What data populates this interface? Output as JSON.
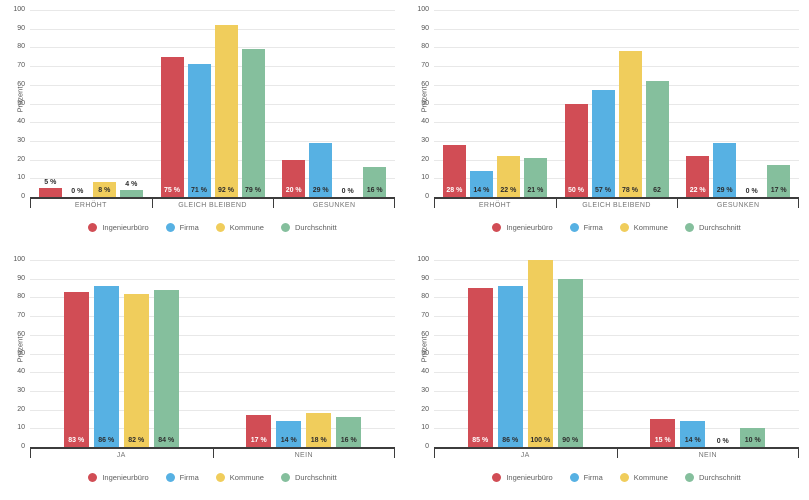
{
  "page": {
    "background": "#ffffff"
  },
  "colors": {
    "axis": "#3c3c3c",
    "gridline": "#e8e8e8",
    "tick_text": "#555555",
    "category_text": "#757575",
    "legend_text": "#5f5f5f"
  },
  "chart_data": [
    {
      "type": "bar",
      "position": "top-left",
      "title": "",
      "xlabel": "",
      "ylabel": "Prozent",
      "ylim": [
        0,
        100
      ],
      "yticks": [
        0,
        10,
        20,
        30,
        40,
        50,
        60,
        70,
        80,
        90,
        100
      ],
      "grid": true,
      "legend_position": "bottom",
      "categories": [
        "ERHÖHT",
        "GLEICH BLEIBEND",
        "GESUNKEN"
      ],
      "series": [
        {
          "name": "Ingenieurbüro",
          "color": "#d14d55",
          "inside_label_color": "#ffffff",
          "values": [
            5,
            75,
            20
          ],
          "labels": [
            "5 %",
            "75 %",
            "20 %"
          ]
        },
        {
          "name": "Firma",
          "color": "#57b1e3",
          "inside_label_color": "#2e2e2e",
          "values": [
            0,
            71,
            29
          ],
          "labels": [
            "0 %",
            "71 %",
            "29 %"
          ]
        },
        {
          "name": "Kommune",
          "color": "#f0cd5c",
          "inside_label_color": "#2e2e2e",
          "values": [
            8,
            92,
            0
          ],
          "labels": [
            "8 %",
            "92 %",
            "0 %"
          ]
        },
        {
          "name": "Durchschnitt",
          "color": "#85bf9d",
          "inside_label_color": "#2e2e2e",
          "values": [
            4,
            79,
            16
          ],
          "labels": [
            "4 %",
            "79 %",
            "16 %"
          ]
        }
      ]
    },
    {
      "type": "bar",
      "position": "top-right",
      "title": "",
      "xlabel": "",
      "ylabel": "Prozent",
      "ylim": [
        0,
        100
      ],
      "yticks": [
        0,
        10,
        20,
        30,
        40,
        50,
        60,
        70,
        80,
        90,
        100
      ],
      "grid": true,
      "legend_position": "bottom",
      "categories": [
        "ERHÖHT",
        "GLEICH BLEIBEND",
        "GESUNKEN"
      ],
      "series": [
        {
          "name": "Ingenieurbüro",
          "color": "#d14d55",
          "inside_label_color": "#ffffff",
          "values": [
            28,
            50,
            22
          ],
          "labels": [
            "28 %",
            "50 %",
            "22 %"
          ]
        },
        {
          "name": "Firma",
          "color": "#57b1e3",
          "inside_label_color": "#2e2e2e",
          "values": [
            14,
            57,
            29
          ],
          "labels": [
            "14 %",
            "57 %",
            "29 %"
          ]
        },
        {
          "name": "Kommune",
          "color": "#f0cd5c",
          "inside_label_color": "#2e2e2e",
          "values": [
            22,
            78,
            0
          ],
          "labels": [
            "22 %",
            "78 %",
            "0 %"
          ]
        },
        {
          "name": "Durchschnitt",
          "color": "#85bf9d",
          "inside_label_color": "#2e2e2e",
          "values": [
            21,
            62,
            17
          ],
          "labels": [
            "21 %",
            "62",
            "17 %"
          ]
        }
      ]
    },
    {
      "type": "bar",
      "position": "bottom-left",
      "title": "",
      "xlabel": "",
      "ylabel": "Prozent",
      "ylim": [
        0,
        100
      ],
      "yticks": [
        0,
        10,
        20,
        30,
        40,
        50,
        60,
        70,
        80,
        90,
        100
      ],
      "grid": true,
      "legend_position": "bottom",
      "categories": [
        "JA",
        "NEIN"
      ],
      "series": [
        {
          "name": "Ingenieurbüro",
          "color": "#d14d55",
          "inside_label_color": "#ffffff",
          "values": [
            83,
            17
          ],
          "labels": [
            "83 %",
            "17 %"
          ]
        },
        {
          "name": "Firma",
          "color": "#57b1e3",
          "inside_label_color": "#2e2e2e",
          "values": [
            86,
            14
          ],
          "labels": [
            "86 %",
            "14 %"
          ]
        },
        {
          "name": "Kommune",
          "color": "#f0cd5c",
          "inside_label_color": "#2e2e2e",
          "values": [
            82,
            18
          ],
          "labels": [
            "82 %",
            "18 %"
          ]
        },
        {
          "name": "Durchschnitt",
          "color": "#85bf9d",
          "inside_label_color": "#2e2e2e",
          "values": [
            84,
            16
          ],
          "labels": [
            "84 %",
            "16 %"
          ]
        }
      ]
    },
    {
      "type": "bar",
      "position": "bottom-right",
      "title": "",
      "xlabel": "",
      "ylabel": "Prozent",
      "ylim": [
        0,
        100
      ],
      "yticks": [
        0,
        10,
        20,
        30,
        40,
        50,
        60,
        70,
        80,
        90,
        100
      ],
      "grid": true,
      "legend_position": "bottom",
      "categories": [
        "JA",
        "NEIN"
      ],
      "series": [
        {
          "name": "Ingenieurbüro",
          "color": "#d14d55",
          "inside_label_color": "#ffffff",
          "values": [
            85,
            15
          ],
          "labels": [
            "85 %",
            "15 %"
          ]
        },
        {
          "name": "Firma",
          "color": "#57b1e3",
          "inside_label_color": "#2e2e2e",
          "values": [
            86,
            14
          ],
          "labels": [
            "86 %",
            "14 %"
          ]
        },
        {
          "name": "Kommune",
          "color": "#f0cd5c",
          "inside_label_color": "#2e2e2e",
          "values": [
            100,
            0
          ],
          "labels": [
            "100 %",
            "0 %"
          ]
        },
        {
          "name": "Durchschnitt",
          "color": "#85bf9d",
          "inside_label_color": "#2e2e2e",
          "values": [
            90,
            10
          ],
          "labels": [
            "90 %",
            "10 %"
          ]
        }
      ]
    }
  ]
}
